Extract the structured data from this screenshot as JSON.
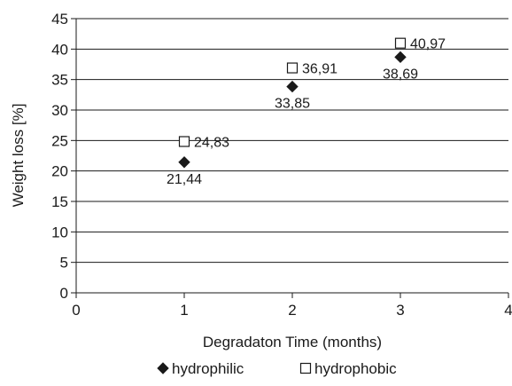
{
  "chart_data": {
    "type": "scatter",
    "title": "",
    "xlabel": "Degradaton Time (months)",
    "ylabel": "Weight loss [%]",
    "xlim": [
      0,
      4
    ],
    "ylim": [
      0,
      45
    ],
    "x_ticks": [
      "0",
      "1",
      "2",
      "3",
      "4"
    ],
    "y_ticks": [
      "0",
      "5",
      "10",
      "15",
      "20",
      "25",
      "30",
      "35",
      "40",
      "45"
    ],
    "grid": "horizontal",
    "legend": "bottom",
    "series": [
      {
        "name": "hydrophilic",
        "marker": "filled-diamond",
        "color": "#1a1a1a",
        "x": [
          1,
          2,
          3
        ],
        "y": [
          21.44,
          33.85,
          38.69
        ],
        "labels": [
          "21,44",
          "33,85",
          "38,69"
        ],
        "label_position": "below"
      },
      {
        "name": "hydrophobic",
        "marker": "open-square",
        "color": "#1a1a1a",
        "x": [
          1,
          2,
          3
        ],
        "y": [
          24.83,
          36.91,
          40.97
        ],
        "labels": [
          "24,83",
          "36,91",
          "40,97"
        ],
        "label_position": "right"
      }
    ]
  }
}
